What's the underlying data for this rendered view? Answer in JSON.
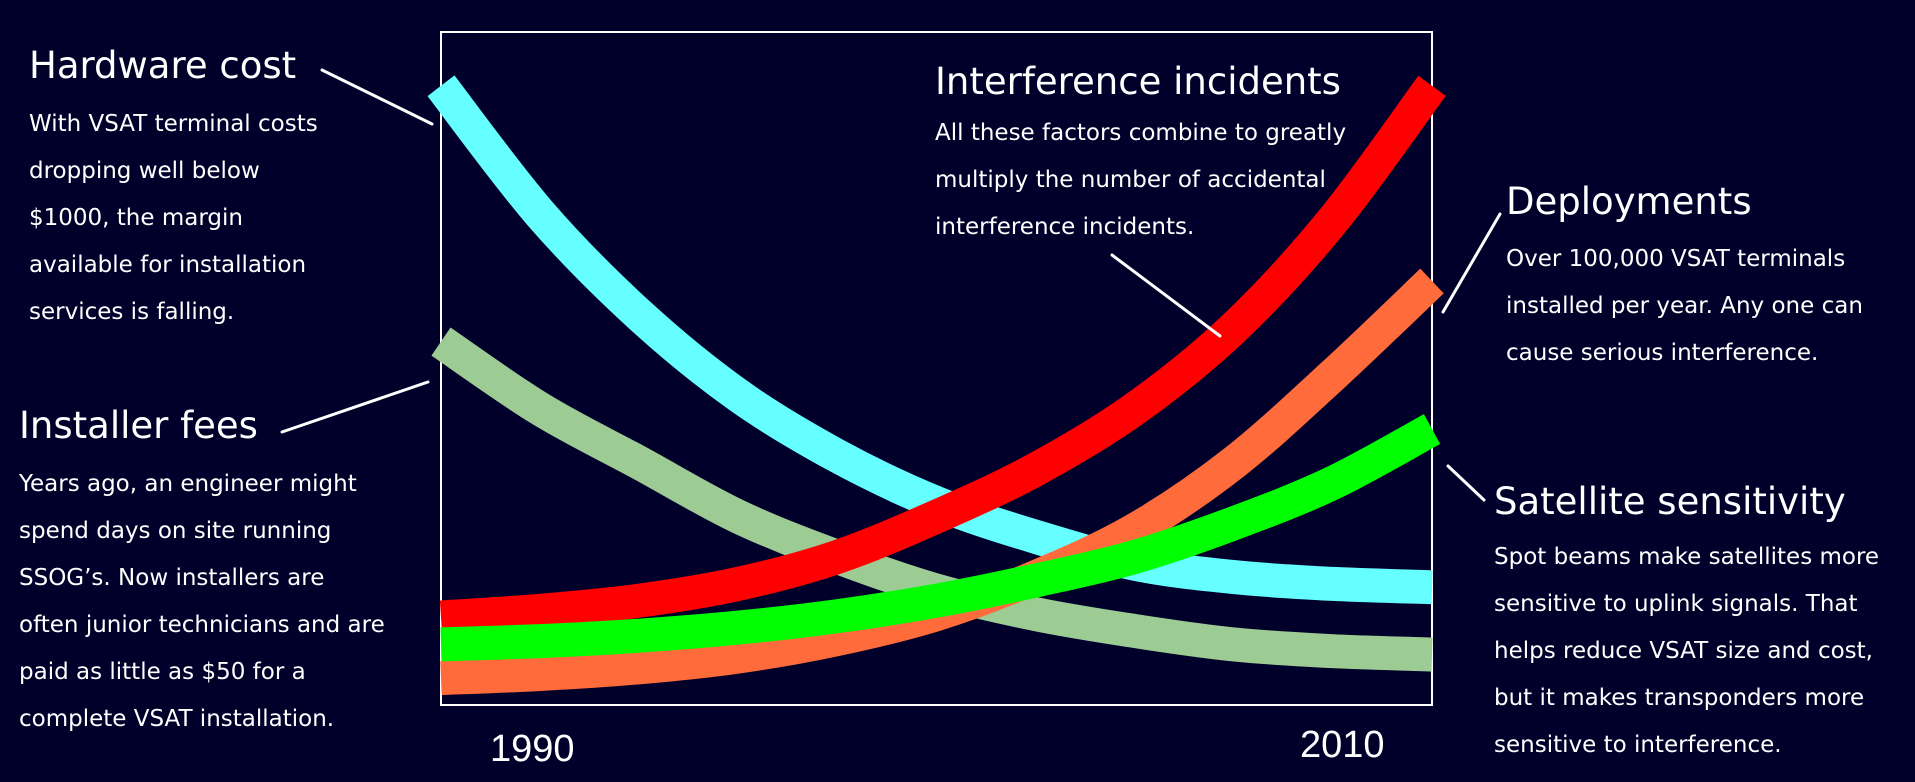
{
  "chart_data": {
    "type": "line",
    "title": "",
    "xlabel": "",
    "ylabel": "",
    "x_range": [
      1990,
      2010
    ],
    "y_range": [
      0,
      100
    ],
    "tick_labels": [
      "1990",
      "2010"
    ],
    "grid": false,
    "legend": "none",
    "series": [
      {
        "key": "hardware",
        "color": "#66ffff",
        "points": [
          [
            1990,
            92
          ],
          [
            1992,
            73
          ],
          [
            1994,
            58
          ],
          [
            1996,
            46
          ],
          [
            1998,
            37
          ],
          [
            2000,
            30
          ],
          [
            2002,
            25
          ],
          [
            2004,
            21
          ],
          [
            2006,
            19
          ],
          [
            2008,
            18
          ],
          [
            2010,
            17.5
          ]
        ]
      },
      {
        "key": "installer",
        "color": "#9ccb93",
        "points": [
          [
            1990,
            54
          ],
          [
            1992,
            44
          ],
          [
            1994,
            36
          ],
          [
            1996,
            28
          ],
          [
            1998,
            22
          ],
          [
            2000,
            17
          ],
          [
            2002,
            13.5
          ],
          [
            2004,
            11
          ],
          [
            2006,
            9
          ],
          [
            2008,
            8
          ],
          [
            2010,
            7.5
          ]
        ]
      },
      {
        "key": "interference",
        "color": "#ff0000",
        "points": [
          [
            1990,
            13
          ],
          [
            1992,
            14
          ],
          [
            1994,
            15.5
          ],
          [
            1996,
            18
          ],
          [
            1998,
            22
          ],
          [
            2000,
            28
          ],
          [
            2002,
            35
          ],
          [
            2004,
            44
          ],
          [
            2006,
            56
          ],
          [
            2008,
            72
          ],
          [
            2010,
            92
          ]
        ]
      },
      {
        "key": "deployments",
        "color": "#ff6b3a",
        "points": [
          [
            1990,
            4
          ],
          [
            1992,
            4.6
          ],
          [
            1994,
            5.6
          ],
          [
            1996,
            7.2
          ],
          [
            1998,
            9.8
          ],
          [
            2000,
            13.5
          ],
          [
            2002,
            19
          ],
          [
            2004,
            26
          ],
          [
            2006,
            36
          ],
          [
            2008,
            49
          ],
          [
            2010,
            63
          ]
        ]
      },
      {
        "key": "satellite",
        "color": "#00ff00",
        "points": [
          [
            1990,
            9
          ],
          [
            1992,
            9.5
          ],
          [
            1994,
            10.3
          ],
          [
            1996,
            11.5
          ],
          [
            1998,
            13.2
          ],
          [
            2000,
            15.5
          ],
          [
            2002,
            18.5
          ],
          [
            2004,
            22
          ],
          [
            2006,
            27
          ],
          [
            2008,
            33
          ],
          [
            2010,
            41
          ]
        ]
      }
    ]
  },
  "annotations": {
    "hardware": {
      "title": "Hardware cost",
      "lines": [
        "With VSAT terminal costs",
        "dropping well below",
        "$1000, the margin",
        "available for installation",
        "services is  falling."
      ]
    },
    "installer": {
      "title": "Installer fees",
      "lines": [
        "Years ago, an engineer might",
        "spend days on site running",
        "SSOG’s.   Now installers are",
        "often junior technicians and are",
        "paid as little as $50 for a",
        "complete VSAT installation."
      ]
    },
    "interference": {
      "title": "Interference incidents",
      "lines": [
        "All these factors combine to greatly",
        "multiply the number of accidental",
        "interference incidents."
      ]
    },
    "deployments": {
      "title": "Deployments",
      "lines": [
        "Over  100,000 VSAT terminals",
        "installed per year.  Any one can",
        "cause serious interference."
      ]
    },
    "satellite": {
      "title": "Satellite sensitivity",
      "lines": [
        "Spot beams make satellites more",
        "sensitive to uplink signals.  That",
        "helps reduce VSAT size and cost,",
        "but it makes transponders more",
        "sensitive to interference."
      ]
    }
  },
  "colors": {
    "background": "#00002a",
    "frame": "#ffffff",
    "text": "#ffffff"
  }
}
